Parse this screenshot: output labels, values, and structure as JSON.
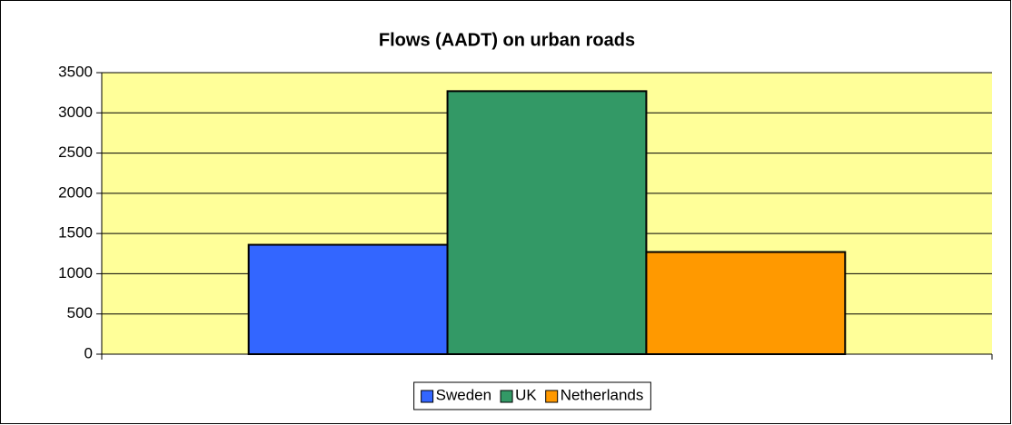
{
  "chart_data": {
    "type": "bar",
    "title": "Flows (AADT) on urban roads",
    "categories": [
      null
    ],
    "series": [
      {
        "name": "Sweden",
        "color": "#3366ff",
        "values": [
          1360
        ]
      },
      {
        "name": "UK",
        "color": "#339966",
        "values": [
          3270
        ]
      },
      {
        "name": "Netherlands",
        "color": "#ff9900",
        "values": [
          1270
        ]
      }
    ],
    "ylim": [
      0,
      3500
    ],
    "yticks": [
      0,
      500,
      1000,
      1500,
      2000,
      2500,
      3000,
      3500
    ],
    "grid": true,
    "plot_background": "#ffff99",
    "legend": "bottom"
  }
}
